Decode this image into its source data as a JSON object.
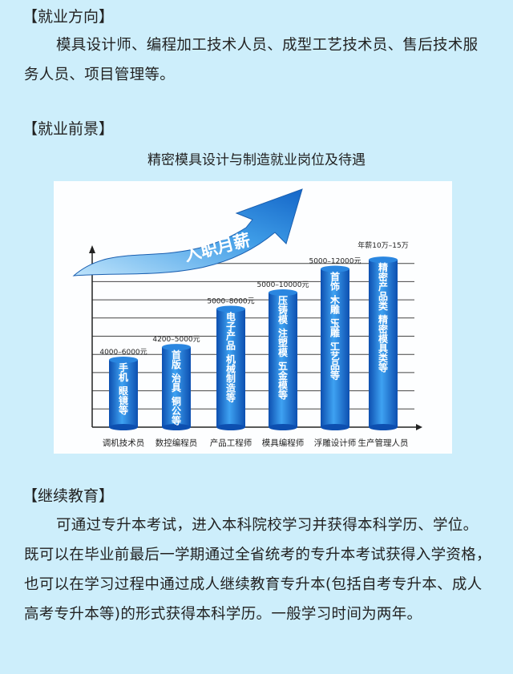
{
  "sections": {
    "direction": {
      "heading": "【就业方向】",
      "body": "模具设计师、编程加工技术人员、成型工艺技术员、售后技术服务人员、项目管理等。"
    },
    "prospect": {
      "heading": "【就业前景】",
      "chart_title": "精密模具设计与制造就业岗位及待遇"
    },
    "education": {
      "heading": "【继续教育】",
      "body": "可通过专升本考试，进入本科院校学习并获得本科学历、学位。既可以在毕业前最后一学期通过全省统考的专升本考试获得入学资格，也可以在学习过程中通过成人继续教育专升本(包括自考专升本、成人高考专升本等)的形式获得本科学历。一般学习时间为两年。"
    }
  },
  "infographic": {
    "arrow_label": "入职月薪",
    "bars": [
      {
        "category": "调机技术员",
        "salary": "4000–6000元",
        "desc": "手机、眼镜等",
        "level": 3.7
      },
      {
        "category": "数控编程员",
        "salary": "4200–5000元",
        "desc": "首版、治具、铜公等",
        "level": 4.4
      },
      {
        "category": "产品工程师",
        "salary": "5000–8000元",
        "desc": "电子产品、机械制造等",
        "level": 6.5
      },
      {
        "category": "模具编程师",
        "salary": "5000–10000元",
        "desc": "压铸模、注塑模、五金模等",
        "level": 7.4
      },
      {
        "category": "浮雕设计师",
        "salary": "5000–12000元",
        "desc": "首饰、木雕、玉雕、工艺品等",
        "level": 8.7
      },
      {
        "category": "生产管理人员",
        "salary": "年薪10万–15万",
        "desc": "精密产品类、精密模具类等",
        "level": 9.2
      }
    ],
    "colors": {
      "bar": "#1a6fd0",
      "bar_light": "#3fa0f0",
      "arrow": "#2f8fe0"
    }
  }
}
